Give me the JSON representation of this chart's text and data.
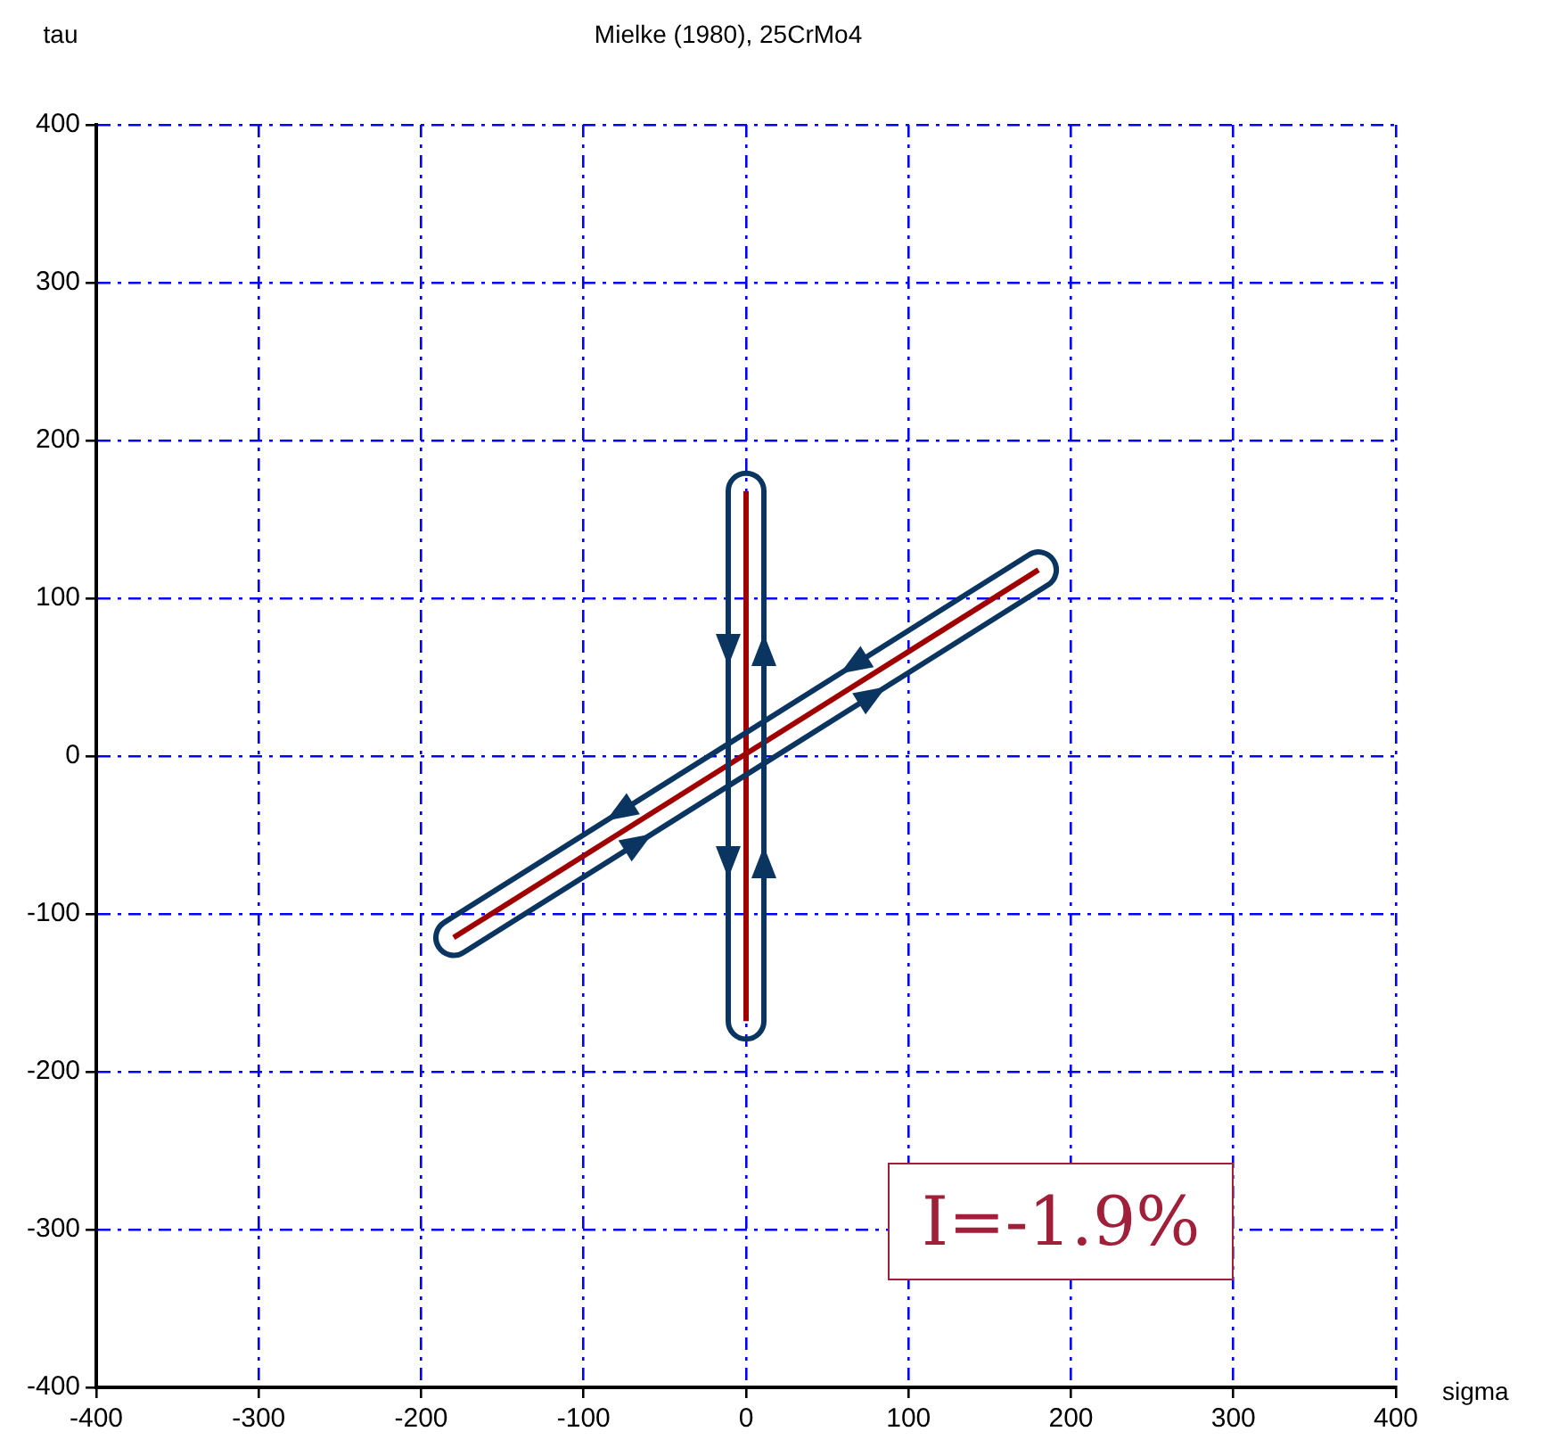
{
  "chart_data": {
    "type": "line",
    "title": "Mielke (1980), 25CrMo4",
    "xlabel": "sigma",
    "ylabel": "tau",
    "series": [
      {
        "color": "#a00000",
        "x": [
          0,
          0
        ],
        "values": [
          -168,
          168
        ]
      },
      {
        "color": "#a00000",
        "x": [
          -180,
          180
        ],
        "values": [
          -115,
          118
        ]
      }
    ],
    "xlim": [
      -400,
      400
    ],
    "xticks": [
      -400,
      -300,
      -200,
      -100,
      0,
      100,
      200,
      300,
      400
    ],
    "ylim": [
      -400,
      400
    ],
    "yticks": [
      -400,
      -300,
      -200,
      -100,
      0,
      100,
      200,
      300,
      400
    ],
    "grid": true,
    "legend": false,
    "marker": "none",
    "line_style": "solid",
    "annotations": [
      "I=-1.9%"
    ]
  }
}
